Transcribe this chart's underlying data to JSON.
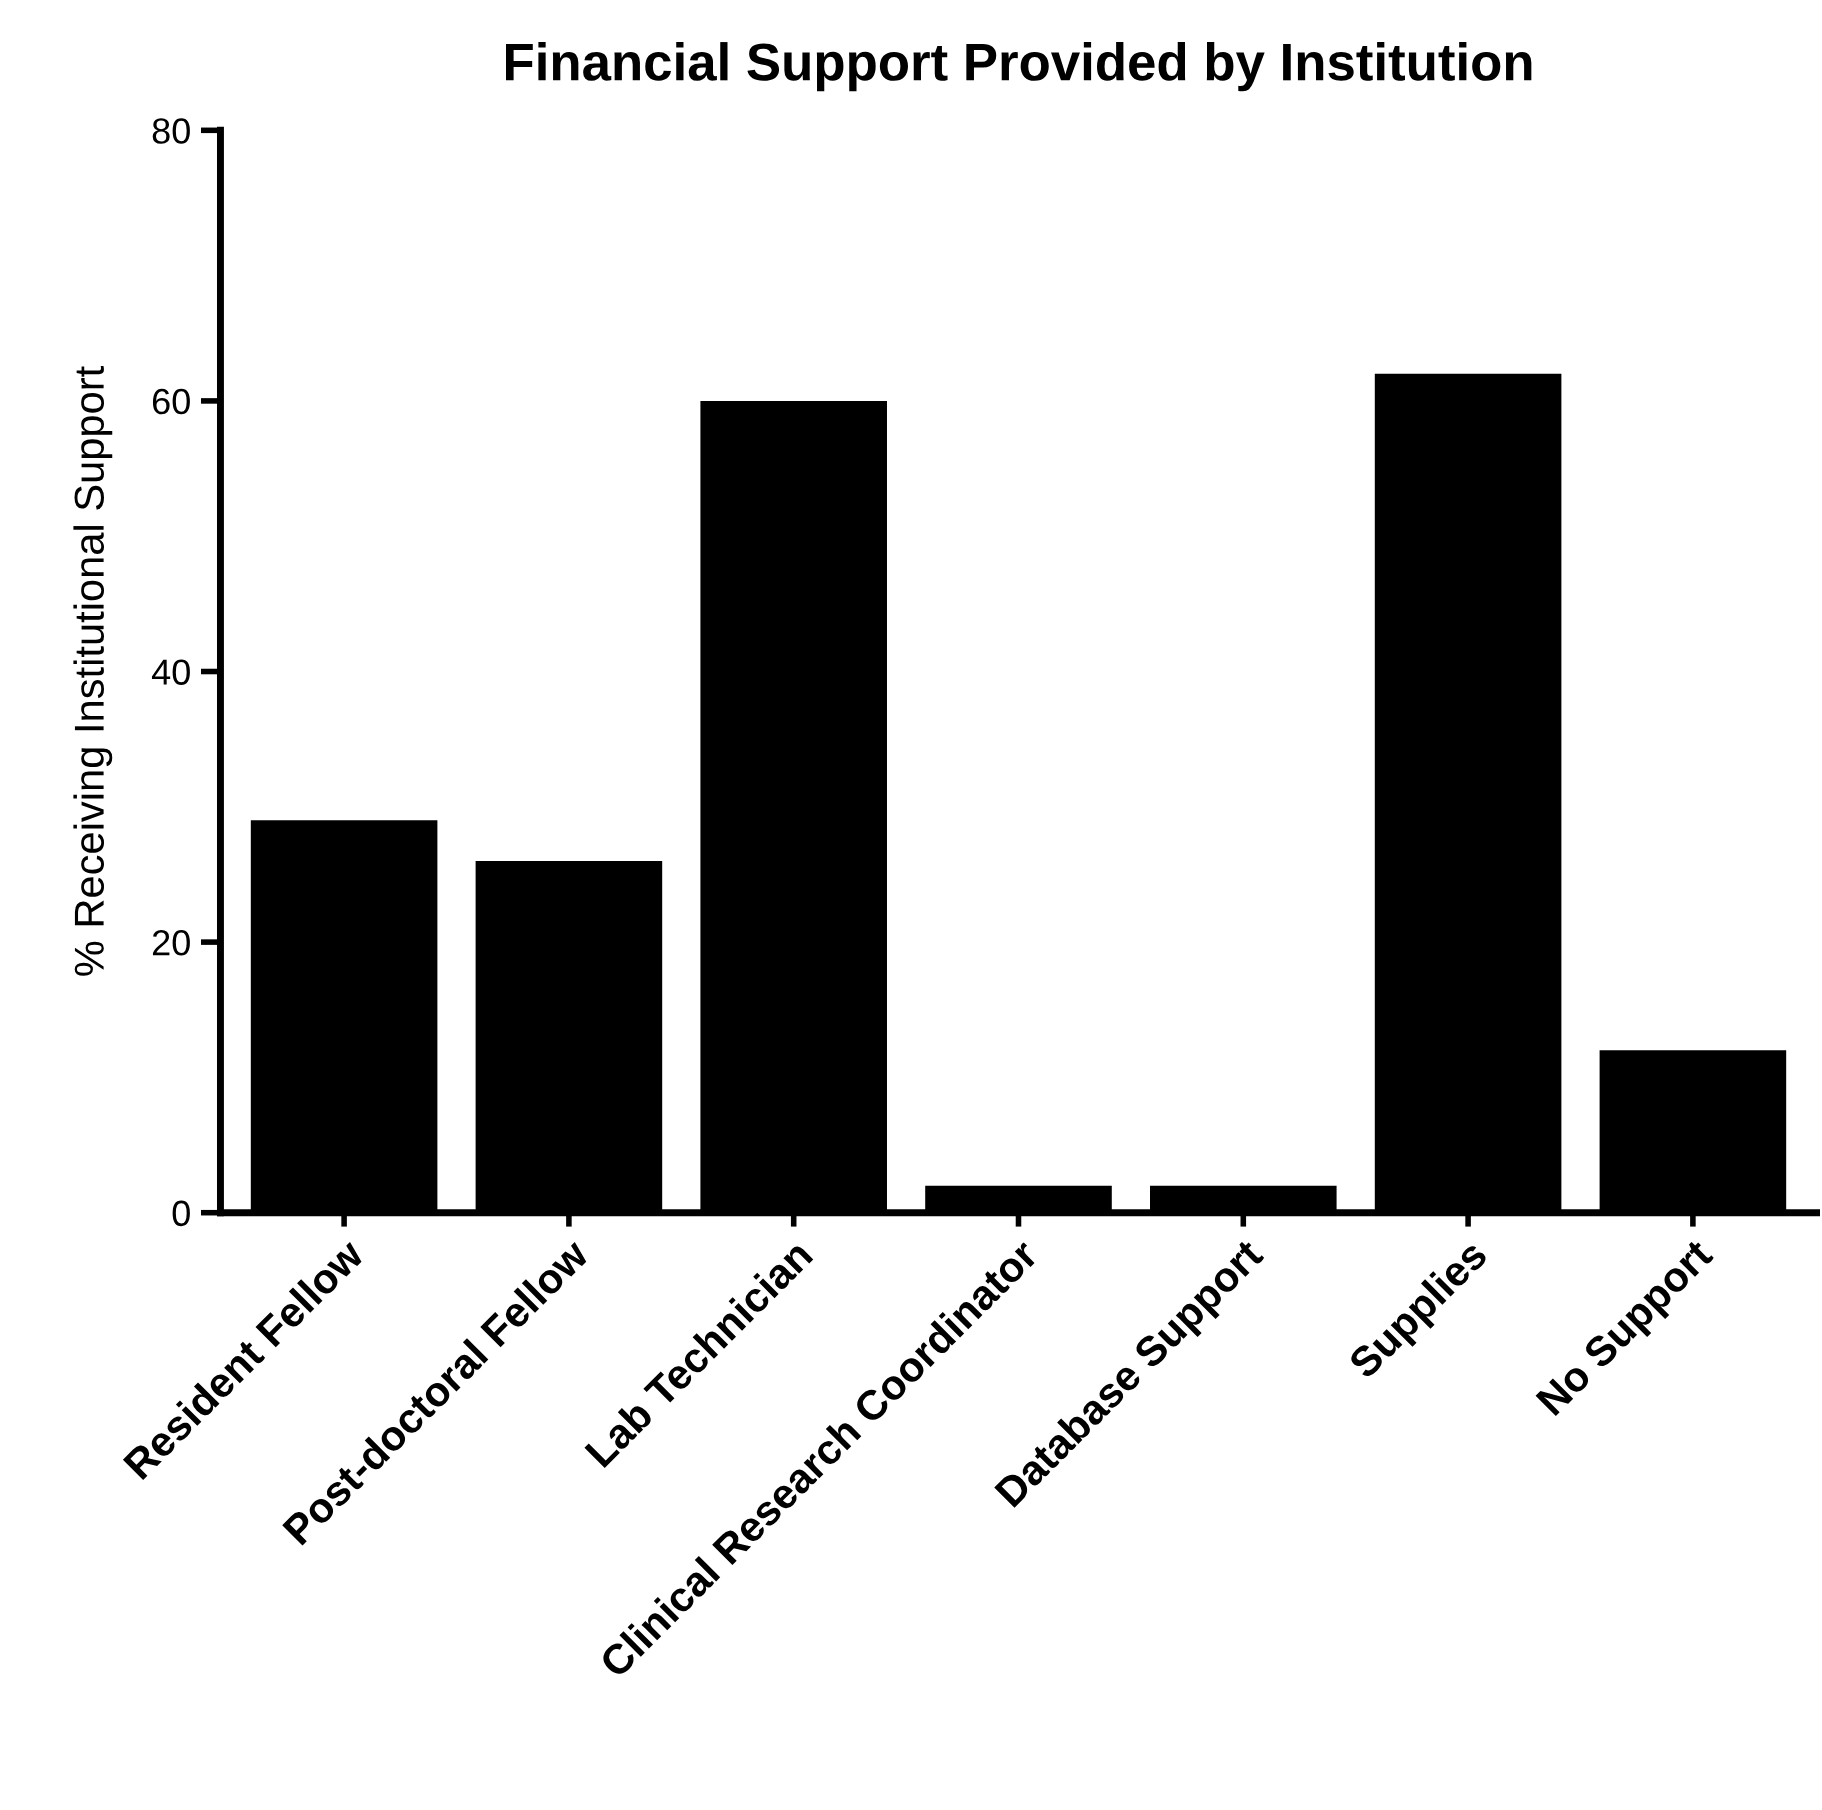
{
  "chart_data": {
    "type": "bar",
    "title": "Financial Support Provided by Institution",
    "ylabel": "% Receiving Institutional Support",
    "categories": [
      "Resident Fellow",
      "Post-doctoral Fellow",
      "Lab Technician",
      "Clinical Research Coordinator",
      "Database Support",
      "Supplies",
      "No Support"
    ],
    "values": [
      29,
      26,
      60,
      2,
      2,
      62,
      12
    ],
    "color": "#000000",
    "ylim": [
      0,
      80
    ],
    "yticks": [
      0,
      20,
      40,
      60,
      80
    ],
    "grid": false
  }
}
